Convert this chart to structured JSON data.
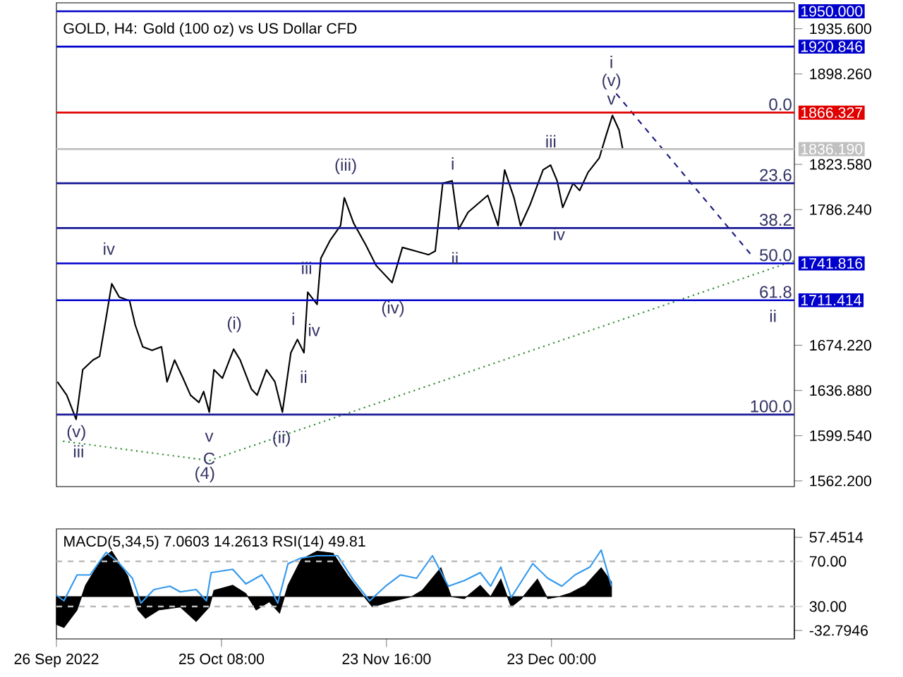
{
  "chart_data": [
    {
      "type": "line",
      "title": "GOLD, H4:  Gold (100 oz) vs US Dollar CFD",
      "xlim": [
        "2022-09-26",
        "2023-02-04T04:00"
      ],
      "ylim": [
        1557.5,
        1957
      ],
      "tick_labels": "y",
      "yticks": [
        {
          "value": 1935.6,
          "label": "1935.600"
        },
        {
          "value": 1898.26,
          "label": "1898.260"
        },
        {
          "value": 1823.58,
          "label": "1823.580"
        },
        {
          "value": 1786.24,
          "label": "1786.240"
        },
        {
          "value": 1674.22,
          "label": "1674.220"
        },
        {
          "value": 1636.88,
          "label": "1636.880"
        },
        {
          "value": 1599.54,
          "label": "1599.540"
        },
        {
          "value": 1562.2,
          "label": "1562.200"
        }
      ],
      "series": [
        {
          "color": "#000000",
          "x": [
            "2022-09-26T04:00",
            "2022-09-27T20:00",
            "2022-09-29T12:00",
            "2022-09-30T16:00",
            "2022-10-02T12:00",
            "2022-10-03T16:00",
            "2022-10-04T20:00",
            "2022-10-05T20:00",
            "2022-10-07T04:00",
            "2022-10-09T00:00",
            "2022-10-10T00:00",
            "2022-10-11T08:00",
            "2022-10-13T00:00",
            "2022-10-14T16:00",
            "2022-10-15T16:00",
            "2022-10-17T00:00",
            "2022-10-18T12:00",
            "2022-10-19T20:00",
            "2022-10-21T08:00",
            "2022-10-22T04:00",
            "2022-10-23T04:00",
            "2022-10-24T00:00",
            "2022-10-25T12:00",
            "2022-10-27T12:00",
            "2022-10-28T16:00",
            "2022-10-30T16:00",
            "2022-10-31T16:00",
            "2022-11-02T08:00",
            "2022-11-03T20:00",
            "2022-11-05T04:00",
            "2022-11-06T16:00",
            "2022-11-07T20:00",
            "2022-11-09T00:00",
            "2022-11-09T16:00",
            "2022-11-11T08:00",
            "2022-11-12T00:00",
            "2022-11-13T16:00",
            "2022-11-15T12:00",
            "2022-11-16T04:00",
            "2022-11-17T20:00",
            "2022-11-20T00:00",
            "2022-11-21T20:00",
            "2022-11-24T16:00",
            "2022-11-26T12:00",
            "2022-11-28T20:00",
            "2022-12-01T04:00",
            "2022-12-02T08:00",
            "2022-12-03T16:00",
            "2022-12-05T08:00",
            "2022-12-06T12:00",
            "2022-12-08T04:00",
            "2022-12-11T16:00",
            "2022-12-13T12:00",
            "2022-12-14T16:00",
            "2022-12-16T08:00",
            "2022-12-17T12:00",
            "2022-12-19T04:00",
            "2022-12-21T12:00",
            "2022-12-22T20:00",
            "2022-12-24T00:00",
            "2022-12-25T00:00",
            "2022-12-26T20:00",
            "2022-12-28T00:00",
            "2022-12-29T12:00",
            "2022-12-31T12:00",
            "2023-01-01T16:00",
            "2023-01-02T20:00",
            "2023-01-04T00:00",
            "2023-01-04T16:00"
          ],
          "values": [
            1644,
            1633,
            1613,
            1654,
            1662,
            1665,
            1697,
            1725,
            1714,
            1711,
            1691,
            1673,
            1670,
            1673,
            1644,
            1662,
            1647,
            1633,
            1627,
            1636,
            1619,
            1654,
            1647,
            1671,
            1662,
            1638,
            1633,
            1654,
            1644,
            1619,
            1668,
            1679,
            1668,
            1718,
            1708,
            1746,
            1761,
            1773,
            1796,
            1775,
            1757,
            1740,
            1726,
            1755,
            1752,
            1749,
            1752,
            1808,
            1810,
            1770,
            1784,
            1798,
            1773,
            1819,
            1796,
            1773,
            1790,
            1819,
            1823,
            1810,
            1788,
            1808,
            1802,
            1817,
            1829,
            1847,
            1864,
            1852,
            1836
          ]
        },
        {
          "type": "line",
          "color": "#2e8b2e",
          "line_style": "dotted",
          "x": [
            "2022-09-27T04:00",
            "2022-10-23T04:00",
            "2023-02-04T04:00"
          ],
          "values": [
            1595,
            1579,
            1744
          ]
        },
        {
          "type": "line",
          "color": "#1a1a80",
          "line_style": "dashed",
          "x": [
            "2023-01-03T12:00",
            "2023-01-27T20:00"
          ],
          "values": [
            1882,
            1747
          ]
        }
      ],
      "ref_lines": [
        {
          "axis": "y",
          "value": 1950,
          "label": "1950.000",
          "color": "#0000cc"
        },
        {
          "axis": "y",
          "value": 1920.846,
          "label": "1920.846",
          "color": "#0000cc"
        },
        {
          "axis": "y",
          "value": 1866.327,
          "label": "1866.327",
          "color": "#e00000"
        },
        {
          "axis": "y",
          "value": 1836.19,
          "label": "1836.190",
          "color": "#c0c0c0"
        },
        {
          "axis": "y",
          "value": 1808,
          "color": "#1a1a99"
        },
        {
          "axis": "y",
          "value": 1771,
          "color": "#1a1a99"
        },
        {
          "axis": "y",
          "value": 1741.816,
          "label": "1741.816",
          "color": "#0000cc"
        },
        {
          "axis": "y",
          "value": 1711.414,
          "label": "1711.414",
          "color": "#0000cc"
        },
        {
          "axis": "y",
          "value": 1617,
          "color": "#1a1a99"
        }
      ],
      "annotations": [
        "(v)",
        "iii",
        "iv",
        "(i)",
        "v",
        "C",
        "(4)",
        "(ii)",
        "i",
        "ii",
        "iii",
        "iv",
        "(iii)",
        "(iv)",
        "i",
        "ii",
        "iii",
        "iv",
        "v",
        "(v)",
        "i",
        "ii",
        {
          "text": "0.0",
          "x": "2023-02-04T04:00",
          "y": 1866.327
        },
        {
          "text": "23.6",
          "x": "2023-02-04T04:00",
          "y": 1808
        },
        {
          "text": "38.2",
          "x": "2023-02-04T04:00",
          "y": 1771
        },
        {
          "text": "50.0",
          "x": "2023-02-04T04:00",
          "y": 1741.816
        },
        {
          "text": "61.8",
          "x": "2023-02-04T04:00",
          "y": 1711.414
        },
        {
          "text": "100.0",
          "x": "2023-02-04T04:00",
          "y": 1617
        }
      ]
    },
    {
      "type": "area",
      "title": "MACD(5,34,5) 7.0603 14.2613 RSI(14) 49.81",
      "xlim": [
        "2022-09-26",
        "2023-02-04T04:00"
      ],
      "xticks": [
        {
          "value": "2022-09-26",
          "label": "26 Sep 2022"
        },
        {
          "value": "2022-10-25T08:00",
          "label": "25 Oct 08:00"
        },
        {
          "value": "2022-11-23T16:00",
          "label": "23 Nov 16:00"
        },
        {
          "value": "2022-12-23T00:00",
          "label": "23 Dec 00:00"
        }
      ],
      "ylim": [
        -41,
        65.6
      ],
      "yticks": [
        57.4514,
        -32.7946
      ],
      "y2lim": [
        1.25,
        98.75
      ],
      "y2ticks": [
        {
          "value": 70,
          "label": "70.00"
        },
        {
          "value": 30,
          "label": "30.00"
        }
      ],
      "series": [
        {
          "color": "#000000",
          "x": [
            "2022-09-26T00:00",
            "2022-09-27T08:00",
            "2022-09-29T16:00",
            "2022-10-01T04:00",
            "2022-10-04T00:00",
            "2022-10-05T20:00",
            "2022-10-08T16:00",
            "2022-10-10T12:00",
            "2022-10-11T20:00",
            "2022-10-14T04:00",
            "2022-10-18T00:00",
            "2022-10-20T20:00",
            "2022-10-23T04:00",
            "2022-10-24T00:00",
            "2022-10-27T08:00",
            "2022-10-29T16:00",
            "2022-10-31T12:00",
            "2022-11-02T20:00",
            "2022-11-04T16:00",
            "2022-11-06T04:00",
            "2022-11-08T12:00",
            "2022-11-11T08:00",
            "2022-11-14T04:00",
            "2022-11-16T20:00",
            "2022-11-19T16:00",
            "2022-11-21T04:00",
            "2022-11-24T08:00",
            "2022-11-28T04:00",
            "2022-11-30T00:00",
            "2022-12-03T08:00",
            "2022-12-05T04:00",
            "2022-12-07T12:00",
            "2022-12-10T08:00",
            "2022-12-12T04:00",
            "2022-12-14T00:00",
            "2022-12-15T20:00",
            "2022-12-17T16:00",
            "2022-12-20T12:00",
            "2022-12-22T08:00",
            "2022-12-24T08:00",
            "2022-12-26T04:00",
            "2022-12-29T00:00",
            "2022-12-31T20:00",
            "2023-01-02T16:00"
          ],
          "values": [
            -27,
            -30,
            -13,
            11,
            36,
            44,
            20,
            -13,
            -21,
            -13,
            -10,
            -24,
            -10,
            6,
            11,
            3,
            -13,
            -5,
            -16,
            11,
            36,
            44,
            42,
            20,
            0,
            -10,
            -5,
            0,
            6,
            28,
            0,
            -2,
            11,
            0,
            17,
            -10,
            -2,
            17,
            -2,
            0,
            3,
            11,
            28,
            14
          ]
        },
        {
          "type": "line",
          "axis": "y2",
          "color": "#3399ee",
          "x": [
            "2022-09-26T00:00",
            "2022-09-27T08:00",
            "2022-09-29T16:00",
            "2022-10-02T00:00",
            "2022-10-04T20:00",
            "2022-10-06T20:00",
            "2022-10-09T12:00",
            "2022-10-11T00:00",
            "2022-10-13T08:00",
            "2022-10-16T04:00",
            "2022-10-18T00:00",
            "2022-10-20T20:00",
            "2022-10-22T16:00",
            "2022-10-23T12:00",
            "2022-10-27T08:00",
            "2022-10-29T16:00",
            "2022-11-01T12:00",
            "2022-11-02T20:00",
            "2022-11-04T08:00",
            "2022-11-06T04:00",
            "2022-11-08T12:00",
            "2022-11-11T08:00",
            "2022-11-15T00:00",
            "2022-11-17T20:00",
            "2022-11-20T16:00",
            "2022-11-23T12:00",
            "2022-11-26T04:00",
            "2022-11-29T00:00",
            "2022-12-01T20:00",
            "2022-12-04T16:00",
            "2022-12-07T12:00",
            "2022-12-10T08:00",
            "2022-12-12T04:00",
            "2022-12-14T00:00",
            "2022-12-15T20:00",
            "2022-12-19T16:00",
            "2022-12-22T08:00",
            "2022-12-24T20:00",
            "2022-12-27T04:00",
            "2022-12-29T20:00",
            "2022-12-31T20:00",
            "2023-01-02T16:00"
          ],
          "values": [
            40,
            35,
            58,
            58,
            78,
            70,
            55,
            33,
            45,
            48,
            43,
            45,
            35,
            60,
            63,
            50,
            58,
            48,
            33,
            68,
            73,
            75,
            75,
            53,
            35,
            48,
            58,
            55,
            75,
            48,
            53,
            60,
            48,
            65,
            38,
            68,
            55,
            48,
            58,
            65,
            80,
            48
          ]
        }
      ],
      "ref_lines": [
        {
          "axis": "y2",
          "value": 70,
          "color": "#bbbbbb",
          "line_style": "dashed"
        },
        {
          "axis": "y2",
          "value": 30,
          "color": "#bbbbbb",
          "line_style": "dashed"
        }
      ]
    }
  ]
}
